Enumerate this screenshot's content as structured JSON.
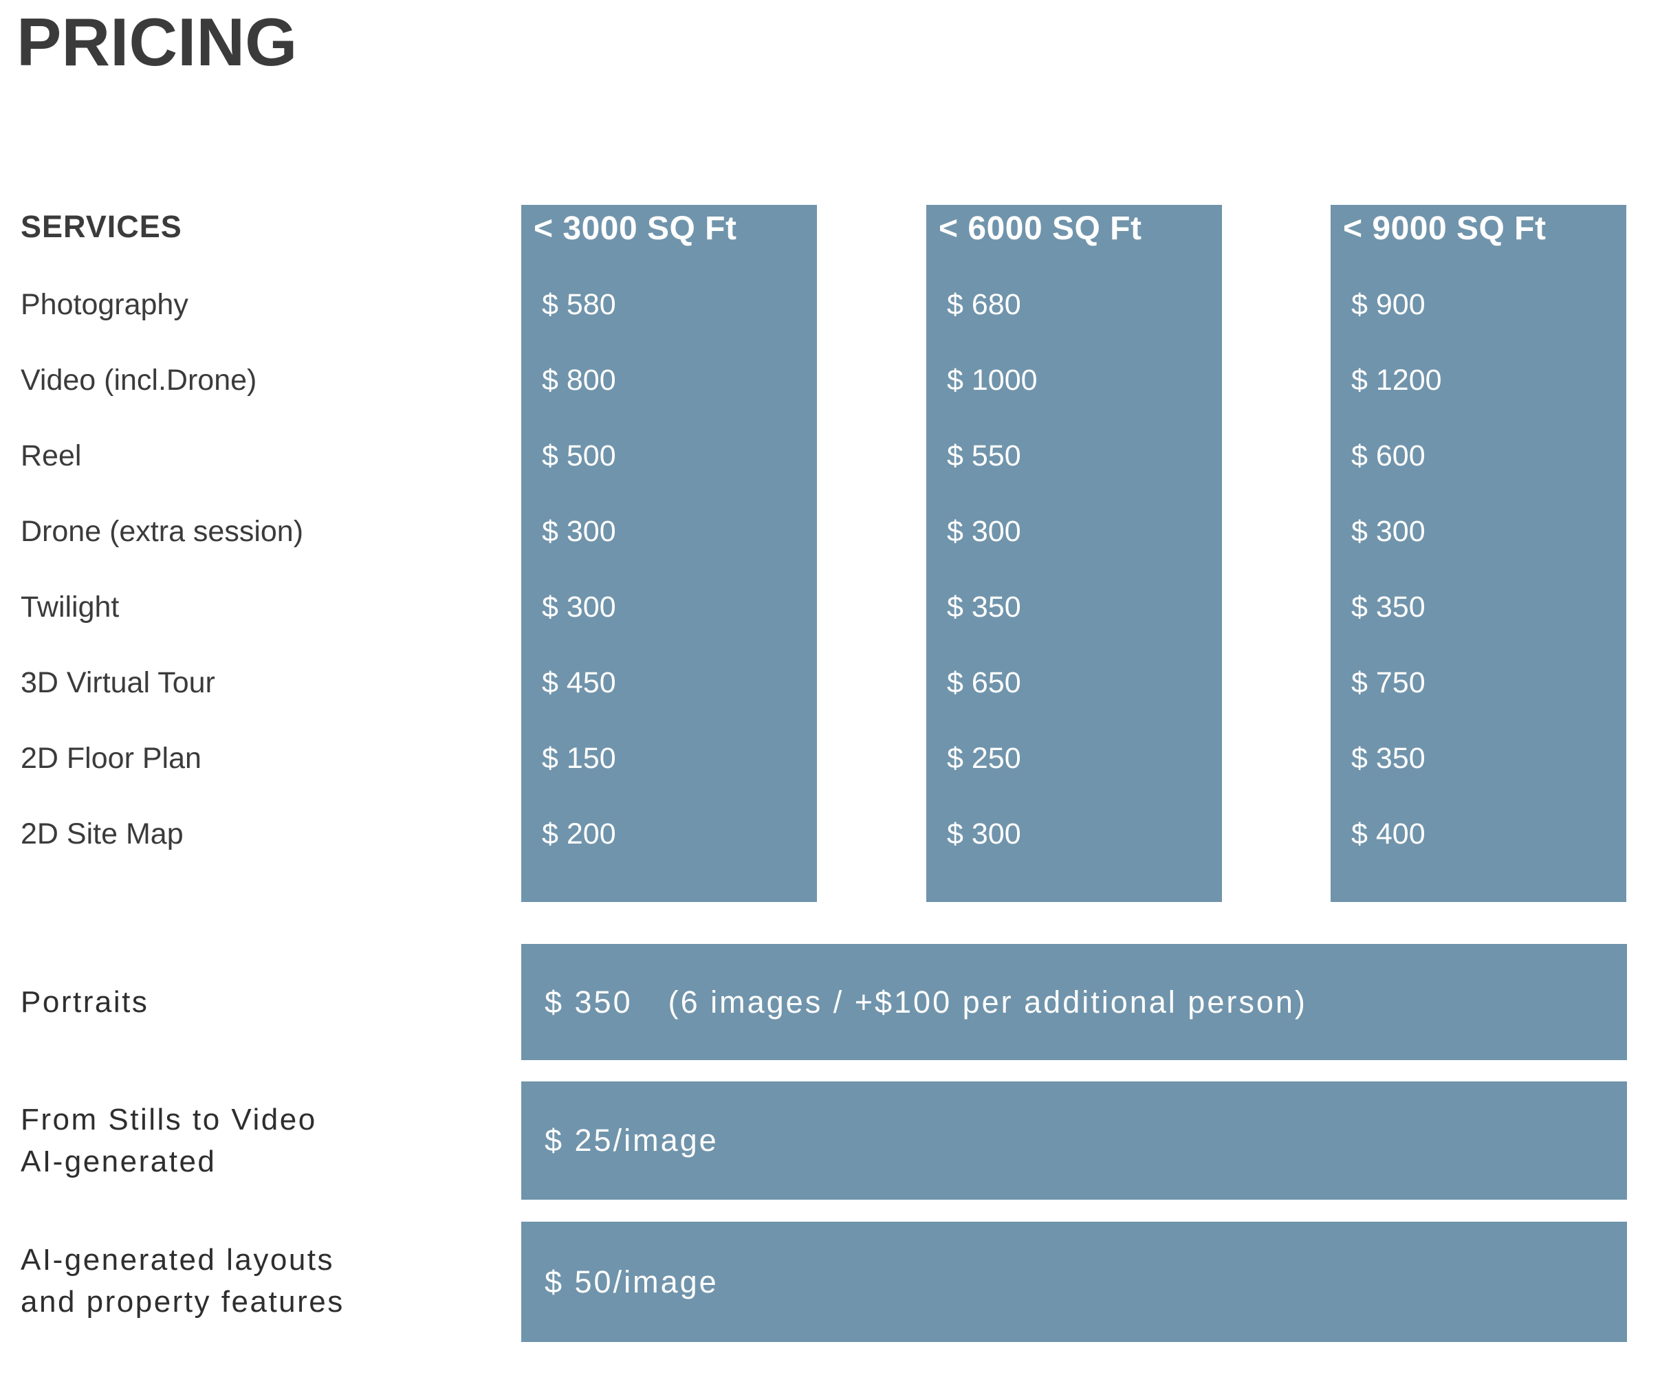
{
  "title": "PRICING",
  "colors": {
    "accent": "#7094ab",
    "heading_text": "#3b3b3b",
    "band_text": "#ffffff"
  },
  "table": {
    "services_header": "SERVICES",
    "columns": [
      "< 3000 SQ Ft",
      "< 6000 SQ Ft",
      "< 9000 SQ Ft"
    ],
    "rows": [
      {
        "service": "Photography",
        "prices": [
          "$ 580",
          "$ 680",
          "$ 900"
        ]
      },
      {
        "service": "Video (incl.Drone)",
        "prices": [
          "$ 800",
          "$ 1000",
          "$ 1200"
        ]
      },
      {
        "service": "Reel",
        "prices": [
          "$ 500",
          "$ 550",
          "$ 600"
        ]
      },
      {
        "service": "Drone (extra session)",
        "prices": [
          "$ 300",
          "$ 300",
          "$ 300"
        ]
      },
      {
        "service": "Twilight",
        "prices": [
          "$ 300",
          "$ 350",
          "$ 350"
        ]
      },
      {
        "service": "3D Virtual Tour",
        "prices": [
          "$ 450",
          "$ 650",
          "$ 750"
        ]
      },
      {
        "service": "2D Floor Plan",
        "prices": [
          "$ 150",
          "$ 250",
          "$ 350"
        ]
      },
      {
        "service": "2D Site Map",
        "prices": [
          "$ 200",
          "$ 300",
          "$ 400"
        ]
      }
    ]
  },
  "extras": [
    {
      "service": "Portraits",
      "price": "$ 350",
      "note": "(6 images / +$100 per additional person)"
    },
    {
      "service": "From Stills to Video\nAI-generated",
      "price": "$ 25/image",
      "note": ""
    },
    {
      "service": "AI-generated layouts\nand property features",
      "price": "$ 50/image",
      "note": ""
    }
  ]
}
